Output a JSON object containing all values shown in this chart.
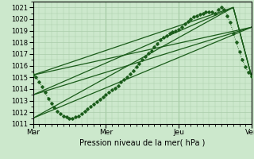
{
  "title": "",
  "xlabel": "Pression niveau de la mer( hPa )",
  "ylabel": "",
  "xlim": [
    0,
    72
  ],
  "ylim": [
    1011,
    1021.5
  ],
  "yticks": [
    1011,
    1012,
    1013,
    1014,
    1015,
    1016,
    1017,
    1018,
    1019,
    1020,
    1021
  ],
  "xtick_labels": [
    "Mar",
    "Mer",
    "Jeu",
    "Ven"
  ],
  "xtick_positions": [
    0,
    24,
    48,
    72
  ],
  "bg_color": "#cce8cc",
  "grid_color": "#aaccaa",
  "line_color": "#1a5c1a",
  "figsize": [
    3.2,
    2.0
  ],
  "dpi": 100,
  "main_x": [
    0,
    1,
    2,
    3,
    4,
    5,
    6,
    7,
    8,
    9,
    10,
    11,
    12,
    13,
    14,
    15,
    16,
    17,
    18,
    19,
    20,
    21,
    22,
    23,
    24,
    25,
    26,
    27,
    28,
    29,
    30,
    31,
    32,
    33,
    34,
    35,
    36,
    37,
    38,
    39,
    40,
    41,
    42,
    43,
    44,
    45,
    46,
    47,
    48,
    49,
    50,
    51,
    52,
    53,
    54,
    55,
    56,
    57,
    58,
    59,
    60,
    61,
    62,
    63,
    64,
    65,
    66,
    67,
    68,
    69,
    70,
    71,
    72
  ],
  "main_y": [
    1015.2,
    1015.0,
    1014.6,
    1014.2,
    1013.7,
    1013.2,
    1012.8,
    1012.4,
    1012.1,
    1011.9,
    1011.7,
    1011.6,
    1011.5,
    1011.5,
    1011.6,
    1011.7,
    1011.9,
    1012.1,
    1012.3,
    1012.5,
    1012.7,
    1012.9,
    1013.1,
    1013.3,
    1013.5,
    1013.7,
    1013.9,
    1014.1,
    1014.3,
    1014.6,
    1014.8,
    1015.0,
    1015.3,
    1015.6,
    1015.9,
    1016.2,
    1016.5,
    1016.8,
    1017.1,
    1017.3,
    1017.6,
    1017.9,
    1018.2,
    1018.4,
    1018.6,
    1018.8,
    1018.9,
    1019.0,
    1019.1,
    1019.3,
    1019.6,
    1019.8,
    1020.0,
    1020.2,
    1020.3,
    1020.4,
    1020.5,
    1020.6,
    1020.6,
    1020.6,
    1020.5,
    1020.8,
    1021.0,
    1020.8,
    1020.3,
    1019.7,
    1018.8,
    1018.0,
    1017.2,
    1016.5,
    1015.9,
    1015.4,
    1015.1
  ],
  "fan_lines": [
    {
      "x0": 0,
      "y0": 1015.2,
      "x1": 66,
      "y1": 1021.0,
      "x2": 72,
      "y2": 1015.1
    },
    {
      "x0": 0,
      "y0": 1015.2,
      "x1": 72,
      "y1": 1019.3
    },
    {
      "x0": 0,
      "y0": 1013.5,
      "x1": 66,
      "y1": 1021.0,
      "x2": 72,
      "y2": 1015.1
    },
    {
      "x0": 0,
      "y0": 1013.5,
      "x1": 72,
      "y1": 1019.3
    },
    {
      "x0": 0,
      "y0": 1011.5,
      "x1": 66,
      "y1": 1021.0,
      "x2": 72,
      "y2": 1015.1
    },
    {
      "x0": 0,
      "y0": 1011.5,
      "x1": 72,
      "y1": 1019.3
    }
  ]
}
